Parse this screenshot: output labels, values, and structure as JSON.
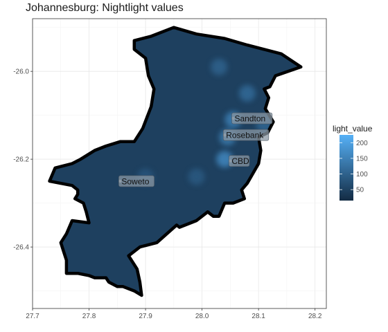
{
  "chart_data": {
    "type": "heatmap",
    "title": "Johannesburg: Nightlight values",
    "xlim": [
      27.7,
      28.22
    ],
    "ylim": [
      -26.54,
      -25.88
    ],
    "x_ticks": [
      27.7,
      27.8,
      27.9,
      28.0,
      28.1,
      28.2
    ],
    "x_tick_labels": [
      "27.7",
      "27.8",
      "27.9",
      "28.0",
      "28.1",
      "28.2"
    ],
    "y_ticks": [
      -26.0,
      -26.2,
      -26.4
    ],
    "y_tick_labels": [
      "-26.0",
      "-26.2",
      "-26.4"
    ],
    "grid": true,
    "legend": {
      "title": "light_value",
      "placement": "right",
      "range": [
        15,
        225
      ],
      "ticks": [
        50,
        100,
        150,
        200
      ],
      "tick_labels": [
        "50",
        "100",
        "150",
        "200"
      ],
      "color_low": "#132b43",
      "color_high": "#56b1f7"
    },
    "boundary": [
      [
        27.88,
        -25.93
      ],
      [
        27.91,
        -25.92
      ],
      [
        27.95,
        -25.9
      ],
      [
        27.99,
        -25.915
      ],
      [
        28.04,
        -25.925
      ],
      [
        28.08,
        -25.94
      ],
      [
        28.11,
        -25.95
      ],
      [
        28.14,
        -25.96
      ],
      [
        28.175,
        -25.99
      ],
      [
        28.13,
        -26.01
      ],
      [
        28.12,
        -26.035
      ],
      [
        28.11,
        -26.04
      ],
      [
        28.118,
        -26.06
      ],
      [
        28.112,
        -26.085
      ],
      [
        28.126,
        -26.115
      ],
      [
        28.116,
        -26.14
      ],
      [
        28.1,
        -26.15
      ],
      [
        28.104,
        -26.18
      ],
      [
        28.1,
        -26.21
      ],
      [
        28.08,
        -26.255
      ],
      [
        28.07,
        -26.27
      ],
      [
        28.075,
        -26.29
      ],
      [
        28.055,
        -26.3
      ],
      [
        28.04,
        -26.3
      ],
      [
        28.03,
        -26.33
      ],
      [
        28.02,
        -26.33
      ],
      [
        28.01,
        -26.32
      ],
      [
        27.99,
        -26.34
      ],
      [
        27.96,
        -26.355
      ],
      [
        27.955,
        -26.35
      ],
      [
        27.92,
        -26.39
      ],
      [
        27.89,
        -26.4
      ],
      [
        27.87,
        -26.42
      ],
      [
        27.885,
        -26.45
      ],
      [
        27.89,
        -26.48
      ],
      [
        27.893,
        -26.51
      ],
      [
        27.88,
        -26.5
      ],
      [
        27.86,
        -26.49
      ],
      [
        27.85,
        -26.49
      ],
      [
        27.835,
        -26.48
      ],
      [
        27.83,
        -26.47
      ],
      [
        27.81,
        -26.47
      ],
      [
        27.8,
        -26.465
      ],
      [
        27.78,
        -26.46
      ],
      [
        27.76,
        -26.46
      ],
      [
        27.76,
        -26.43
      ],
      [
        27.755,
        -26.41
      ],
      [
        27.75,
        -26.39
      ],
      [
        27.76,
        -26.37
      ],
      [
        27.77,
        -26.34
      ],
      [
        27.8,
        -26.345
      ],
      [
        27.795,
        -26.32
      ],
      [
        27.79,
        -26.3
      ],
      [
        27.775,
        -26.29
      ],
      [
        27.78,
        -26.28
      ],
      [
        27.78,
        -26.27
      ],
      [
        27.77,
        -26.26
      ],
      [
        27.73,
        -26.25
      ],
      [
        27.74,
        -26.22
      ],
      [
        27.77,
        -26.21
      ],
      [
        27.785,
        -26.2
      ],
      [
        27.81,
        -26.18
      ],
      [
        27.83,
        -26.17
      ],
      [
        27.855,
        -26.16
      ],
      [
        27.88,
        -26.16
      ],
      [
        27.895,
        -26.13
      ],
      [
        27.91,
        -26.08
      ],
      [
        27.915,
        -26.04
      ],
      [
        27.905,
        -26.01
      ],
      [
        27.9,
        -25.97
      ],
      [
        27.88,
        -25.95
      ]
    ],
    "hotspots": [
      {
        "x": 28.055,
        "y": -26.11,
        "value": 200
      },
      {
        "x": 28.045,
        "y": -26.15,
        "value": 190
      },
      {
        "x": 28.04,
        "y": -26.2,
        "value": 220
      },
      {
        "x": 28.08,
        "y": -26.05,
        "value": 150
      },
      {
        "x": 28.11,
        "y": -26.12,
        "value": 140
      },
      {
        "x": 27.99,
        "y": -26.24,
        "value": 110
      },
      {
        "x": 27.9,
        "y": -26.24,
        "value": 100
      },
      {
        "x": 28.03,
        "y": -25.99,
        "value": 130
      }
    ],
    "labels": [
      {
        "text": "Sandton",
        "x": 28.055,
        "y": -26.107
      },
      {
        "text": "Rosebank",
        "x": 28.04,
        "y": -26.145
      },
      {
        "text": "CBD",
        "x": 28.05,
        "y": -26.204
      },
      {
        "text": "Soweto",
        "x": 27.855,
        "y": -26.25
      }
    ]
  }
}
